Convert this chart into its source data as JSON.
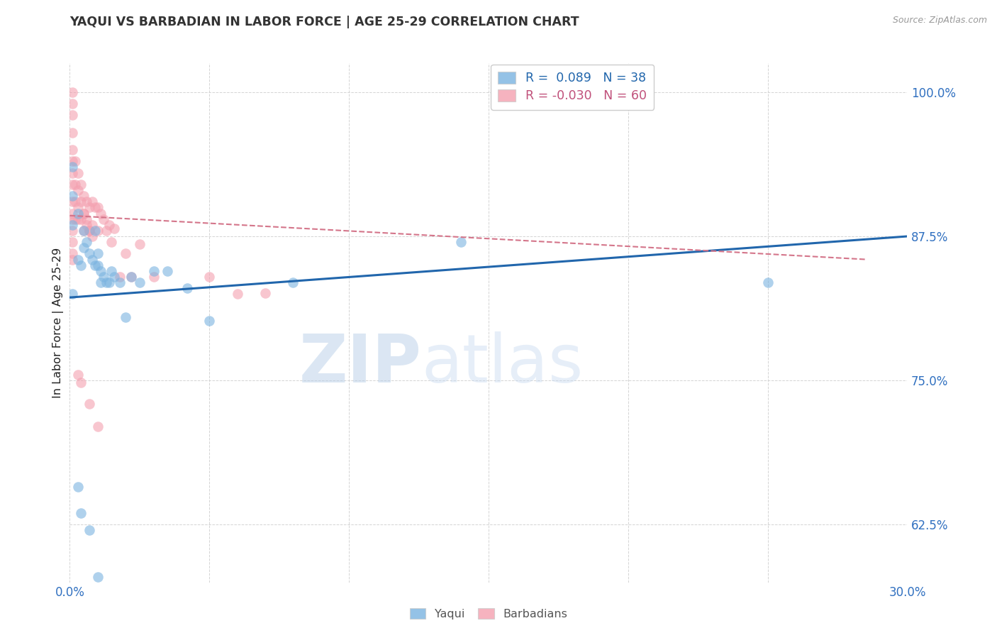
{
  "title": "YAQUI VS BARBADIAN IN LABOR FORCE | AGE 25-29 CORRELATION CHART",
  "source": "Source: ZipAtlas.com",
  "ylabel_label": "In Labor Force | Age 25-29",
  "xlim": [
    0.0,
    0.3
  ],
  "ylim": [
    0.575,
    1.025
  ],
  "xtick_positions": [
    0.0,
    0.05,
    0.1,
    0.15,
    0.2,
    0.25,
    0.3
  ],
  "xtick_labels": [
    "0.0%",
    "",
    "",
    "",
    "",
    "",
    "30.0%"
  ],
  "ytick_values": [
    0.625,
    0.75,
    0.875,
    1.0
  ],
  "ytick_labels": [
    "62.5%",
    "75.0%",
    "87.5%",
    "100.0%"
  ],
  "blue_R": " 0.089",
  "blue_N": "38",
  "pink_R": "-0.030",
  "pink_N": "60",
  "blue_color": "#7ab3e0",
  "pink_color": "#f4a0b0",
  "blue_line_color": "#2166ac",
  "pink_line_color": "#d4758a",
  "watermark_zip": "ZIP",
  "watermark_atlas": "atlas",
  "blue_trend_x0": 0.0,
  "blue_trend_x1": 0.3,
  "blue_trend_y0": 0.822,
  "blue_trend_y1": 0.875,
  "pink_trend_x0": 0.0,
  "pink_trend_x1": 0.285,
  "pink_trend_y0": 0.893,
  "pink_trend_y1": 0.855,
  "grid_color": "#d0d0d0",
  "bg_color": "#ffffff",
  "yaqui_x": [
    0.001,
    0.001,
    0.001,
    0.001,
    0.003,
    0.003,
    0.004,
    0.005,
    0.005,
    0.006,
    0.007,
    0.008,
    0.009,
    0.009,
    0.01,
    0.01,
    0.011,
    0.011,
    0.012,
    0.013,
    0.014,
    0.015,
    0.016,
    0.018,
    0.02,
    0.022,
    0.025,
    0.03,
    0.035,
    0.042,
    0.05,
    0.08,
    0.14,
    0.25,
    0.003,
    0.004,
    0.007,
    0.01
  ],
  "yaqui_y": [
    0.935,
    0.91,
    0.885,
    0.825,
    0.895,
    0.855,
    0.85,
    0.88,
    0.865,
    0.87,
    0.86,
    0.855,
    0.85,
    0.88,
    0.85,
    0.86,
    0.845,
    0.835,
    0.84,
    0.835,
    0.835,
    0.845,
    0.84,
    0.835,
    0.805,
    0.84,
    0.835,
    0.845,
    0.845,
    0.83,
    0.802,
    0.835,
    0.87,
    0.835,
    0.658,
    0.635,
    0.62,
    0.58
  ],
  "barbadian_x": [
    0.001,
    0.001,
    0.001,
    0.001,
    0.001,
    0.001,
    0.001,
    0.001,
    0.001,
    0.001,
    0.001,
    0.001,
    0.001,
    0.001,
    0.001,
    0.002,
    0.002,
    0.002,
    0.002,
    0.003,
    0.003,
    0.003,
    0.003,
    0.004,
    0.004,
    0.004,
    0.005,
    0.005,
    0.005,
    0.006,
    0.006,
    0.007,
    0.007,
    0.008,
    0.008,
    0.009,
    0.01,
    0.01,
    0.011,
    0.012,
    0.013,
    0.014,
    0.015,
    0.016,
    0.018,
    0.02,
    0.022,
    0.025,
    0.03,
    0.05,
    0.06,
    0.07,
    0.003,
    0.004,
    0.007,
    0.01,
    0.005,
    0.006,
    0.007,
    0.008
  ],
  "barbadian_y": [
    1.0,
    0.99,
    0.98,
    0.965,
    0.95,
    0.94,
    0.93,
    0.92,
    0.905,
    0.895,
    0.89,
    0.88,
    0.87,
    0.86,
    0.855,
    0.94,
    0.92,
    0.905,
    0.89,
    0.93,
    0.915,
    0.9,
    0.89,
    0.92,
    0.905,
    0.89,
    0.91,
    0.895,
    0.88,
    0.905,
    0.89,
    0.9,
    0.88,
    0.905,
    0.885,
    0.9,
    0.9,
    0.88,
    0.895,
    0.89,
    0.88,
    0.885,
    0.87,
    0.882,
    0.84,
    0.86,
    0.84,
    0.868,
    0.84,
    0.84,
    0.825,
    0.826,
    0.755,
    0.748,
    0.73,
    0.71,
    0.895,
    0.885,
    0.88,
    0.875
  ]
}
